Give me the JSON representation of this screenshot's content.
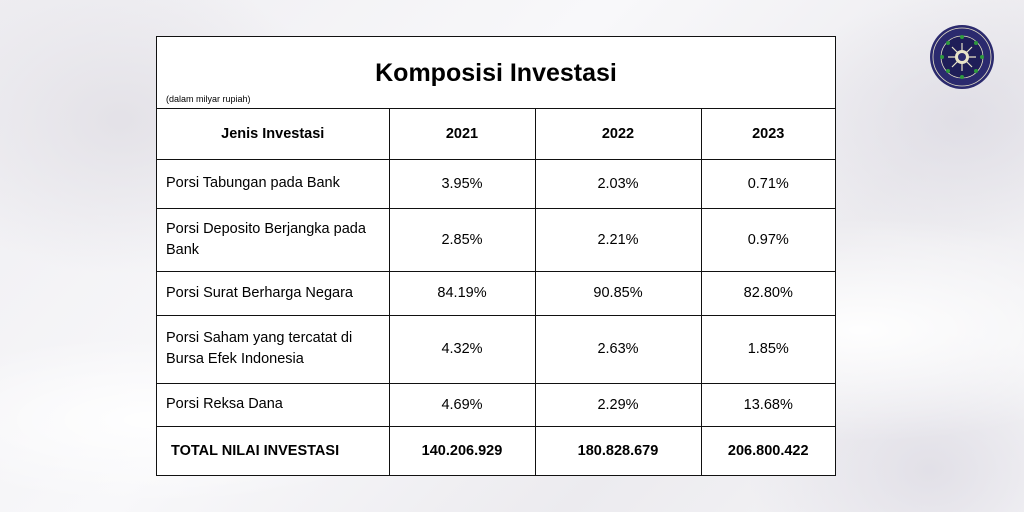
{
  "title": "Komposisi Investasi",
  "unit_note": "(dalam milyar rupiah)",
  "table": {
    "headers": [
      "Jenis Investasi",
      "2021",
      "2022",
      "2023"
    ],
    "rows": [
      {
        "label": "Porsi Tabungan pada Bank",
        "v2021": "3.95%",
        "v2022": "2.03%",
        "v2023": "0.71%"
      },
      {
        "label": "Porsi Deposito Berjangka pada Bank",
        "v2021": "2.85%",
        "v2022": "2.21%",
        "v2023": "0.97%"
      },
      {
        "label": "Porsi Surat Berharga Negara",
        "v2021": "84.19%",
        "v2022": "90.85%",
        "v2023": "82.80%"
      },
      {
        "label": "Porsi Saham yang tercatat di Bursa Efek Indonesia",
        "v2021": "4.32%",
        "v2022": "2.63%",
        "v2023": "1.85%"
      },
      {
        "label": "Porsi Reksa Dana",
        "v2021": "4.69%",
        "v2022": "2.29%",
        "v2023": "13.68%"
      }
    ],
    "total": {
      "label": "TOTAL NILAI INVESTASI",
      "v2021": "140.206.929",
      "v2022": "180.828.679",
      "v2023": "206.800.422"
    }
  },
  "logo": {
    "icon": "university-seal-icon",
    "color": "#2b2a6e",
    "accent": "#2e9a3e"
  }
}
